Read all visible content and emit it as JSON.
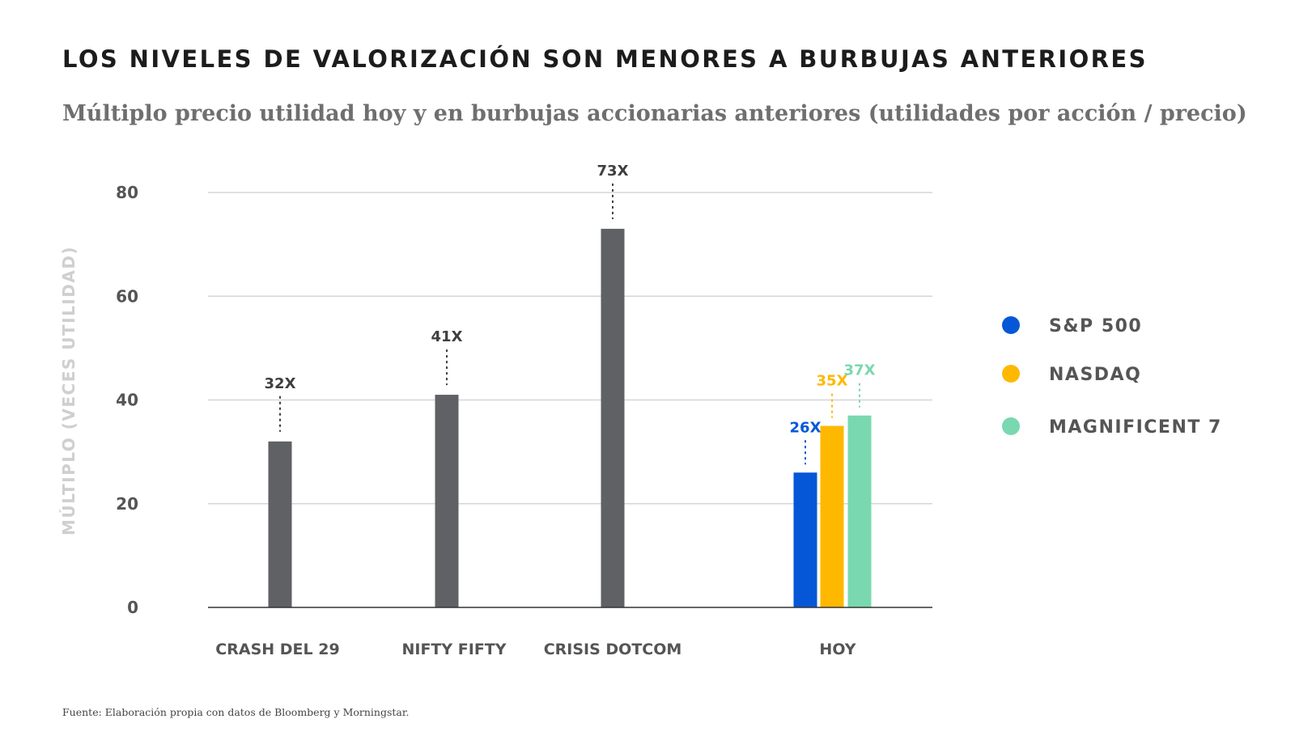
{
  "title": "LOS NIVELES DE VALORIZACIÓN SON MENORES A BURBUJAS ANTERIORES",
  "subtitle": "Múltiplo precio utilidad hoy y en burbujas accionarias anteriores (utilidades por acción / precio)",
  "source": "Fuente: Elaboración propia con datos de Bloomberg y Morningstar.",
  "colors": {
    "historic_bar": "#5f6164",
    "sp500": "#0657d8",
    "nasdaq": "#ffb800",
    "magnificent7": "#79d8af",
    "grid": "#d6d6d6",
    "axis_text": "#555555",
    "ylabel_text": "#cfcfcf"
  },
  "chart_data": {
    "type": "bar",
    "ylabel": "MÚLTIPLO (VECES UTILIDAD)",
    "ylim": [
      0,
      80
    ],
    "yticks": [
      0,
      20,
      40,
      60,
      80
    ],
    "grid": true,
    "legend_position": "right",
    "categories": [
      "CRASH DEL 29",
      "NIFTY FIFTY",
      "CRISIS DOTCOM",
      "HOY"
    ],
    "bars": [
      {
        "category": "CRASH DEL 29",
        "value": 32,
        "label": "32X",
        "color": "#5f6164"
      },
      {
        "category": "NIFTY FIFTY",
        "value": 41,
        "label": "41X",
        "color": "#5f6164"
      },
      {
        "category": "CRISIS DOTCOM",
        "value": 73,
        "label": "73X",
        "color": "#5f6164"
      },
      {
        "category": "HOY",
        "series": "S&P 500",
        "value": 26,
        "label": "26X",
        "color": "#0657d8"
      },
      {
        "category": "HOY",
        "series": "NASDAQ",
        "value": 35,
        "label": "35X",
        "color": "#ffb800"
      },
      {
        "category": "HOY",
        "series": "MAGNIFICENT 7",
        "value": 37,
        "label": "37X",
        "color": "#79d8af"
      }
    ],
    "legend": [
      {
        "name": "S&P 500",
        "color": "#0657d8"
      },
      {
        "name": "NASDAQ",
        "color": "#ffb800"
      },
      {
        "name": "MAGNIFICENT 7",
        "color": "#79d8af"
      }
    ]
  }
}
